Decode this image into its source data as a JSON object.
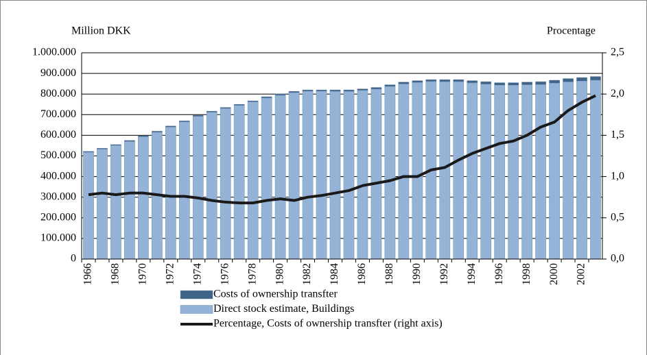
{
  "chart_data": {
    "type": "bar",
    "stacked": true,
    "y_label": "Million DKK",
    "y2_label": "Procentage",
    "categories": [
      "1966",
      null,
      "1968",
      null,
      "1970",
      null,
      "1972",
      null,
      "1974",
      null,
      "1976",
      null,
      "1978",
      null,
      "1980",
      null,
      "1982",
      null,
      "1984",
      null,
      "1986",
      null,
      "1988",
      null,
      "1990",
      null,
      "1992",
      null,
      "1994",
      null,
      "1996",
      null,
      "1998",
      null,
      "2000",
      null,
      "2002",
      null
    ],
    "series": [
      {
        "name": "Costs of ownership transfter",
        "color": "#3f6486",
        "values": [
          4000,
          4000,
          4000,
          5000,
          5000,
          5000,
          5000,
          5000,
          5000,
          5000,
          5000,
          5000,
          5000,
          6000,
          6000,
          6000,
          6000,
          6000,
          7000,
          7000,
          7000,
          8000,
          8000,
          9000,
          9000,
          9000,
          10000,
          10000,
          11000,
          12000,
          12000,
          12000,
          13000,
          14000,
          14000,
          16000,
          17000,
          18000
        ]
      },
      {
        "name": "Direct stock estimate, Buildings",
        "color": "#95b3d7",
        "values": [
          518000,
          533000,
          551000,
          570000,
          593000,
          615000,
          640000,
          665000,
          692000,
          712000,
          730000,
          745000,
          762000,
          781000,
          794000,
          807000,
          814000,
          814000,
          813000,
          813000,
          818000,
          824000,
          837000,
          849000,
          856000,
          861000,
          860000,
          860000,
          854000,
          848000,
          843000,
          843000,
          845000,
          846000,
          853000,
          859000,
          863000,
          867000
        ]
      },
      {
        "name": "Percentage, Costs of ownership transfter (right axis)",
        "color": "#1a1a1a",
        "type": "line",
        "axis": "y2",
        "values": [
          0.78,
          0.8,
          0.78,
          0.8,
          0.8,
          0.78,
          0.76,
          0.76,
          0.74,
          0.71,
          0.69,
          0.68,
          0.68,
          0.71,
          0.73,
          0.71,
          0.75,
          0.77,
          0.8,
          0.83,
          0.89,
          0.92,
          0.95,
          1.0,
          1.0,
          1.08,
          1.11,
          1.2,
          1.28,
          1.34,
          1.4,
          1.43,
          1.5,
          1.6,
          1.66,
          1.8,
          1.9,
          1.98
        ]
      }
    ],
    "ylim": [
      0,
      1000000
    ],
    "yticks": [
      0,
      {
        "value": 100000,
        "label": "100.000"
      },
      {
        "value": 200000,
        "label": "200.000"
      },
      {
        "value": 300000,
        "label": "300.000"
      },
      {
        "value": 400000,
        "label": "400.000"
      },
      {
        "value": 500000,
        "label": "500.000"
      },
      {
        "value": 600000,
        "label": "600.000"
      },
      {
        "value": 700000,
        "label": "700.000"
      },
      {
        "value": 800000,
        "label": "800.000"
      },
      {
        "value": 900000,
        "label": "900.000"
      },
      {
        "value": 1000000,
        "label": "1.000.000"
      }
    ],
    "y2lim": [
      0,
      2.5
    ],
    "y2ticks": [
      {
        "value": 0,
        "label": "0,0"
      },
      {
        "value": 0.5,
        "label": "0,5"
      },
      {
        "value": 1,
        "label": "1,0"
      },
      {
        "value": 1.5,
        "label": "1,5"
      },
      {
        "value": 2,
        "label": "2,0"
      },
      {
        "value": 2.5,
        "label": "2,5"
      }
    ],
    "grid": true
  }
}
